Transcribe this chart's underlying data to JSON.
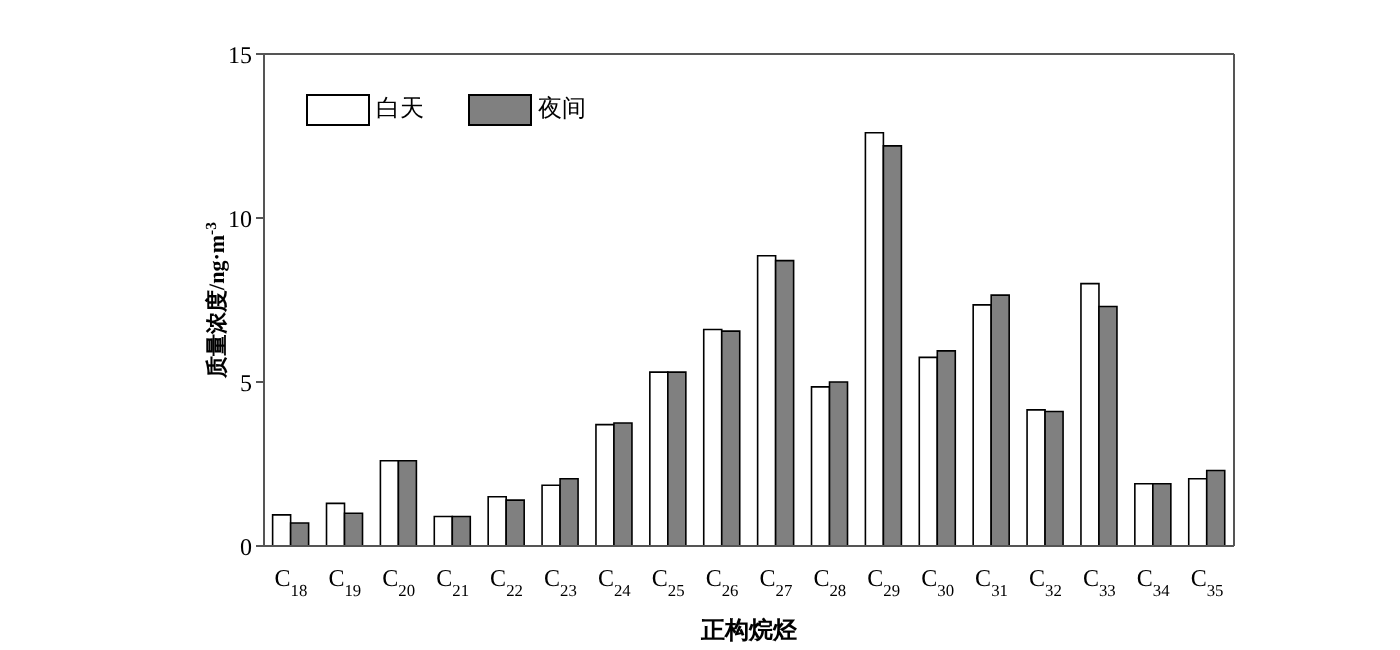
{
  "chart_data": {
    "type": "bar",
    "xlabel": "正构烷烃",
    "ylabel": "质量浓度/ng·m$^{-3}$",
    "categories": [
      "C$_{18}$",
      "C$_{19}$",
      "C$_{20}$",
      "C$_{21}$",
      "C$_{22}$",
      "C$_{23}$",
      "C$_{24}$",
      "C$_{25}$",
      "C$_{26}$",
      "C$_{27}$",
      "C$_{28}$",
      "C$_{29}$",
      "C$_{30}$",
      "C$_{31}$",
      "C$_{32}$",
      "C$_{33}$",
      "C$_{34}$",
      "C$_{35}$"
    ],
    "series": [
      {
        "name": "白天",
        "color": "#ffffff",
        "values": [
          0.95,
          1.3,
          2.6,
          0.9,
          1.5,
          1.85,
          3.7,
          5.3,
          6.6,
          8.85,
          4.85,
          12.6,
          5.75,
          7.35,
          4.15,
          8.0,
          1.9,
          2.05
        ]
      },
      {
        "name": "夜间",
        "color": "#808080",
        "values": [
          0.7,
          1.0,
          2.6,
          0.9,
          1.4,
          2.05,
          3.75,
          5.3,
          6.55,
          8.7,
          5.0,
          12.2,
          5.95,
          7.65,
          4.1,
          7.3,
          1.9,
          2.3
        ]
      }
    ],
    "ylim": [
      0,
      15
    ],
    "yticks": [
      0,
      5,
      10,
      15
    ],
    "grid": false,
    "legend": "top left"
  }
}
